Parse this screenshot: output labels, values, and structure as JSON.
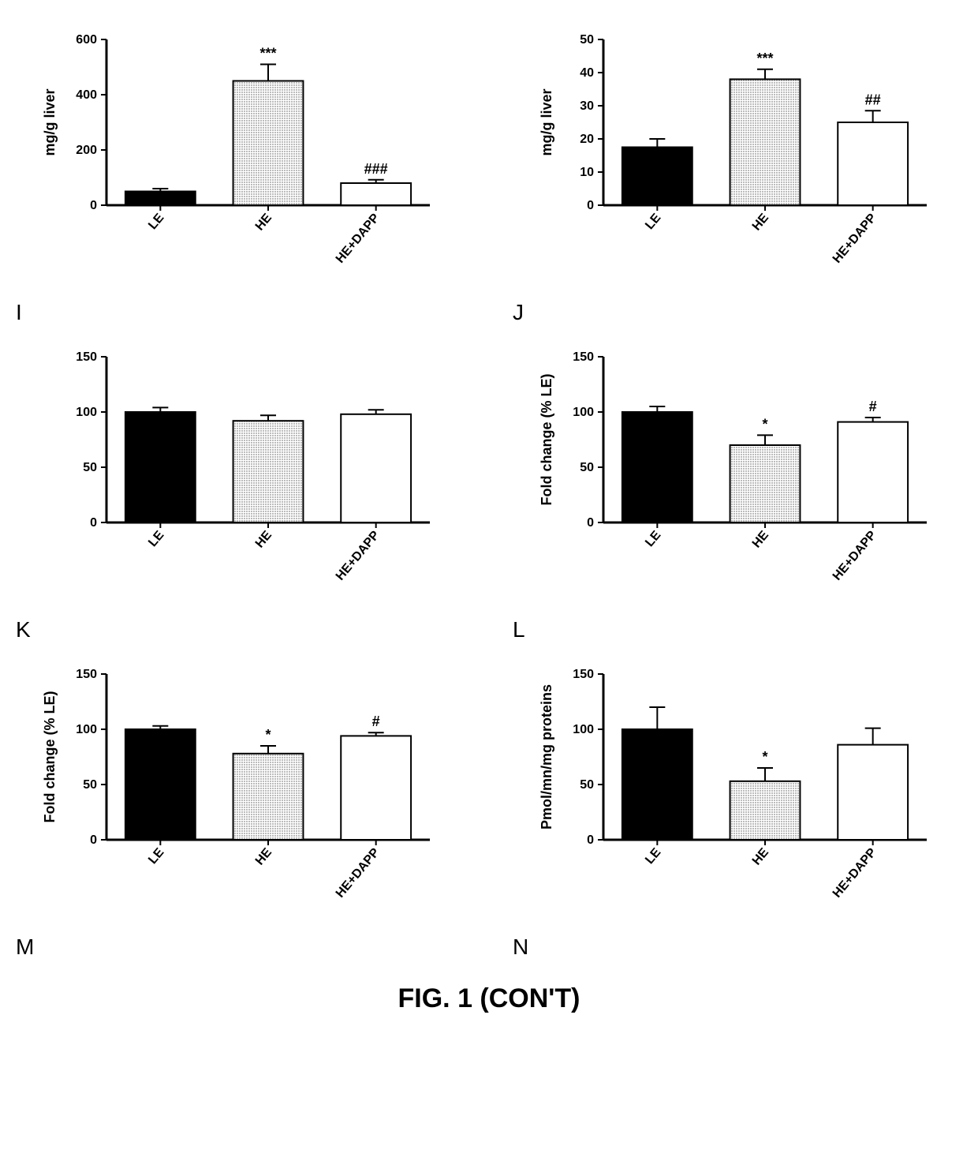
{
  "figure_caption": "FIG. 1 (CON'T)",
  "colors": {
    "bar_black": "#000000",
    "bar_gray_pattern": "#808080",
    "bar_white": "#ffffff",
    "axis": "#000000",
    "text": "#000000",
    "error_bar": "#000000"
  },
  "typography": {
    "axis_label_fontsize": 18,
    "tick_fontsize": 16,
    "annotation_fontsize": 18,
    "panel_label_fontsize": 28,
    "caption_fontsize": 34,
    "font_family": "Arial"
  },
  "panels": [
    {
      "id": "I",
      "ylabel": "mg/g liver",
      "categories": [
        "LE",
        "HE",
        "HE+DAPP"
      ],
      "values": [
        50,
        450,
        80
      ],
      "errors": [
        10,
        60,
        12
      ],
      "fills": [
        "solid_black",
        "gray_dots",
        "white"
      ],
      "annotations": [
        "",
        "***",
        "###"
      ],
      "ylim": [
        0,
        600
      ],
      "ytick_step": 200,
      "bar_width": 0.65
    },
    {
      "id": "J",
      "ylabel": "mg/g liver",
      "categories": [
        "LE",
        "HE",
        "HE+DAPP"
      ],
      "values": [
        17.5,
        38,
        25
      ],
      "errors": [
        2.5,
        3,
        3.5
      ],
      "fills": [
        "solid_black",
        "gray_dots",
        "white"
      ],
      "annotations": [
        "",
        "***",
        "##"
      ],
      "ylim": [
        0,
        50
      ],
      "ytick_step": 10,
      "bar_width": 0.65
    },
    {
      "id": "K",
      "ylabel": "",
      "categories": [
        "LE",
        "HE",
        "HE+DAPP"
      ],
      "values": [
        100,
        92,
        98
      ],
      "errors": [
        4,
        5,
        4
      ],
      "fills": [
        "solid_black",
        "gray_dots",
        "white"
      ],
      "annotations": [
        "",
        "",
        ""
      ],
      "ylim": [
        0,
        150
      ],
      "ytick_step": 50,
      "bar_width": 0.65
    },
    {
      "id": "L",
      "ylabel": "Fold change (% LE)",
      "categories": [
        "LE",
        "HE",
        "HE+DAPP"
      ],
      "values": [
        100,
        70,
        91
      ],
      "errors": [
        5,
        9,
        4
      ],
      "fills": [
        "solid_black",
        "gray_dots",
        "white"
      ],
      "annotations": [
        "",
        "*",
        "#"
      ],
      "ylim": [
        0,
        150
      ],
      "ytick_step": 50,
      "bar_width": 0.65
    },
    {
      "id": "M",
      "ylabel": "Fold change (% LE)",
      "categories": [
        "LE",
        "HE",
        "HE+DAPP"
      ],
      "values": [
        100,
        78,
        94
      ],
      "errors": [
        3,
        7,
        3
      ],
      "fills": [
        "solid_black",
        "gray_dots",
        "white"
      ],
      "annotations": [
        "",
        "*",
        "#"
      ],
      "ylim": [
        0,
        150
      ],
      "ytick_step": 50,
      "bar_width": 0.65
    },
    {
      "id": "N",
      "ylabel": "Pmol/mn/mg proteins",
      "categories": [
        "LE",
        "HE",
        "HE+DAPP"
      ],
      "values": [
        100,
        53,
        86
      ],
      "errors": [
        20,
        12,
        15
      ],
      "fills": [
        "solid_black",
        "gray_dots",
        "white"
      ],
      "annotations": [
        "",
        "*",
        ""
      ],
      "ylim": [
        0,
        150
      ],
      "ytick_step": 50,
      "bar_width": 0.65
    }
  ]
}
